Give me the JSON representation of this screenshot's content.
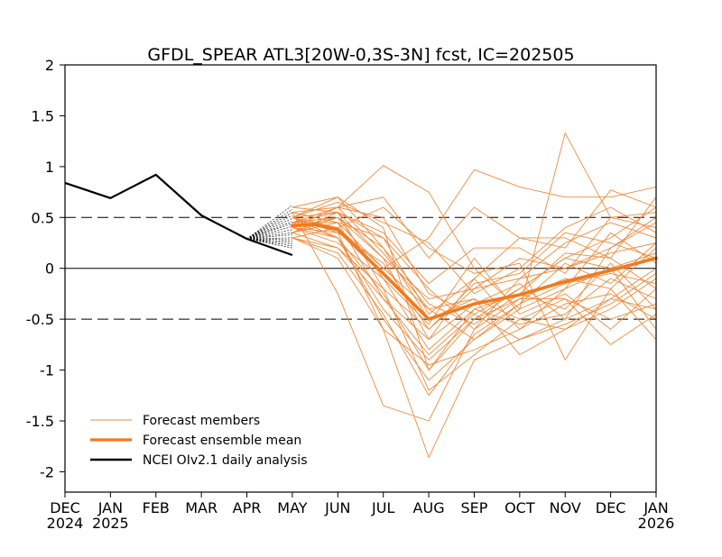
{
  "chart_data": {
    "type": "line",
    "title": "GFDL_SPEAR ATL3[20W-0,3S-3N] fcst, IC=202505",
    "xlabel": "",
    "ylabel": "",
    "ylim": [
      -2.2,
      2.0
    ],
    "yticks": [
      2,
      1.5,
      1,
      0.5,
      0,
      -0.5,
      -1,
      -1.5,
      -2
    ],
    "ytick_labels": [
      "2",
      "1.5",
      "1",
      "0.5",
      "0",
      "-0.5",
      "-1",
      "-1.5",
      "-2"
    ],
    "xlim": [
      0,
      13
    ],
    "xticks": [
      {
        "label": "DEC",
        "year": "2024"
      },
      {
        "label": "JAN",
        "year": "2025"
      },
      {
        "label": "FEB",
        "year": ""
      },
      {
        "label": "MAR",
        "year": ""
      },
      {
        "label": "APR",
        "year": ""
      },
      {
        "label": "MAY",
        "year": ""
      },
      {
        "label": "JUN",
        "year": ""
      },
      {
        "label": "JUL",
        "year": ""
      },
      {
        "label": "AUG",
        "year": ""
      },
      {
        "label": "SEP",
        "year": ""
      },
      {
        "label": "OCT",
        "year": ""
      },
      {
        "label": "NOV",
        "year": ""
      },
      {
        "label": "DEC",
        "year": ""
      },
      {
        "label": "JAN",
        "year": "2026"
      }
    ],
    "reference_lines": [
      {
        "y": 0.5,
        "style": "dashed"
      },
      {
        "y": 0,
        "style": "solid"
      },
      {
        "y": -0.5,
        "style": "dashed"
      }
    ],
    "grid": false,
    "legend_position": "bottom-left",
    "legend": [
      {
        "label": "Forecast members",
        "key": "members"
      },
      {
        "label": "Forecast ensemble mean",
        "key": "mean"
      },
      {
        "label": "NCEI OIv2.1 daily analysis",
        "key": "obs"
      }
    ],
    "colors": {
      "members": "#f08a3c",
      "mean": "#f07a1e",
      "obs": "#000000",
      "initial_fan": "#000000"
    },
    "observed": {
      "x": [
        0,
        1,
        2,
        3,
        4,
        5
      ],
      "y": [
        0.84,
        0.69,
        0.92,
        0.52,
        0.29,
        0.13
      ]
    },
    "initial_fan": {
      "from": [
        4.0,
        0.29
      ],
      "x_end": 5.0,
      "y_ends": [
        0.62,
        0.58,
        0.55,
        0.52,
        0.49,
        0.46,
        0.44,
        0.41,
        0.38,
        0.35,
        0.33,
        0.3,
        0.28,
        0.26,
        0.24,
        0.22,
        0.2
      ]
    },
    "ensemble_mean": {
      "x": [
        5,
        5.5,
        6,
        7,
        8,
        9,
        10,
        11,
        12,
        13
      ],
      "y": [
        0.42,
        0.43,
        0.38,
        -0.05,
        -0.5,
        -0.35,
        -0.26,
        -0.13,
        -0.02,
        0.1
      ]
    },
    "members": {
      "x": [
        5,
        6,
        7,
        8,
        9,
        10,
        11,
        12,
        13
      ],
      "series": [
        {
          "values": [
            0.3,
            0.1,
            -0.6,
            -1.86,
            -0.9,
            -0.7,
            -0.5,
            -0.3,
            0.0
          ]
        },
        {
          "values": [
            0.55,
            -0.25,
            -1.35,
            -1.5,
            -0.6,
            -0.3,
            -0.1,
            -0.2,
            -0.7
          ]
        },
        {
          "values": [
            0.5,
            0.55,
            -0.2,
            -1.2,
            -0.85,
            -0.5,
            -0.6,
            -0.4,
            -0.1
          ]
        },
        {
          "values": [
            0.6,
            0.7,
            0.4,
            -1.0,
            -0.5,
            -0.2,
            0.1,
            0.3,
            0.6
          ]
        },
        {
          "values": [
            0.45,
            0.45,
            0.0,
            0.3,
            0.97,
            0.8,
            0.7,
            0.7,
            0.8
          ]
        },
        {
          "values": [
            0.4,
            0.6,
            1.01,
            0.75,
            0.0,
            -0.4,
            1.33,
            0.5,
            0.4
          ]
        },
        {
          "values": [
            0.35,
            0.2,
            -0.3,
            -0.7,
            -0.1,
            0.3,
            0.2,
            0.77,
            0.6
          ]
        },
        {
          "values": [
            0.5,
            0.7,
            0.2,
            -0.5,
            -0.3,
            -0.85,
            -0.6,
            -0.3,
            -0.4
          ]
        },
        {
          "values": [
            0.4,
            0.5,
            0.1,
            -0.3,
            -0.2,
            -0.1,
            0.25,
            0.45,
            0.3
          ]
        },
        {
          "values": [
            0.3,
            0.4,
            0.6,
            0.2,
            -0.05,
            0.05,
            -0.9,
            -0.2,
            0.2
          ]
        },
        {
          "values": [
            0.5,
            0.3,
            -0.4,
            -0.9,
            -0.5,
            -0.3,
            -0.3,
            -0.75,
            -0.45
          ]
        },
        {
          "values": [
            0.45,
            0.55,
            0.3,
            -0.2,
            -0.6,
            -0.1,
            0.0,
            0.2,
            0.45
          ]
        },
        {
          "values": [
            0.35,
            0.5,
            -0.1,
            -0.8,
            -0.4,
            -0.55,
            -0.45,
            -0.1,
            -0.3
          ]
        },
        {
          "values": [
            0.55,
            0.6,
            0.7,
            0.1,
            0.6,
            0.3,
            0.3,
            0.1,
            -0.2
          ]
        },
        {
          "values": [
            0.4,
            0.3,
            -0.5,
            -1.1,
            -0.7,
            -0.4,
            -0.2,
            0.0,
            -0.6
          ]
        },
        {
          "values": [
            0.5,
            0.4,
            0.0,
            -0.4,
            -0.3,
            -0.5,
            -0.3,
            -0.5,
            -0.35
          ]
        },
        {
          "values": [
            0.3,
            0.2,
            -0.2,
            -0.6,
            -0.2,
            0.1,
            0.0,
            0.15,
            0.25
          ]
        },
        {
          "values": [
            0.45,
            0.6,
            0.5,
            -0.25,
            -0.45,
            -0.2,
            0.1,
            0.0,
            0.15
          ]
        },
        {
          "values": [
            0.4,
            0.35,
            -0.6,
            -0.95,
            -0.8,
            -0.6,
            -0.35,
            -0.25,
            -0.5
          ]
        },
        {
          "values": [
            0.55,
            0.45,
            0.3,
            -0.45,
            -0.1,
            -0.6,
            -0.2,
            0.35,
            0.05
          ]
        },
        {
          "values": [
            0.35,
            0.55,
            0.1,
            -0.7,
            -0.35,
            -0.15,
            -0.5,
            0.2,
            0.5
          ]
        },
        {
          "values": [
            0.5,
            0.65,
            0.45,
            0.25,
            -0.25,
            0.0,
            0.4,
            0.6,
            0.35
          ]
        },
        {
          "values": [
            0.4,
            0.25,
            -0.1,
            -0.55,
            0.1,
            -0.45,
            -0.25,
            -0.6,
            -0.2
          ]
        },
        {
          "values": [
            0.45,
            0.5,
            0.2,
            -0.35,
            -0.55,
            -0.25,
            0.15,
            0.1,
            0.7
          ]
        },
        {
          "values": [
            0.3,
            0.15,
            -0.45,
            -1.25,
            -0.65,
            -0.35,
            -0.15,
            -0.05,
            -0.15
          ]
        },
        {
          "values": [
            0.6,
            0.55,
            0.35,
            -0.15,
            0.2,
            0.2,
            -0.05,
            0.5,
            0.55
          ]
        },
        {
          "values": [
            0.35,
            0.45,
            -0.3,
            -0.85,
            -0.45,
            -0.7,
            -0.55,
            -0.35,
            -0.05
          ]
        },
        {
          "values": [
            0.5,
            0.35,
            0.05,
            -0.6,
            -0.15,
            -0.05,
            0.35,
            0.25,
            0.1
          ]
        },
        {
          "values": [
            0.4,
            0.6,
            0.15,
            -0.4,
            -0.7,
            -0.35,
            0.05,
            -0.15,
            0.25
          ]
        },
        {
          "values": [
            0.45,
            0.3,
            -0.25,
            -1.0,
            -0.4,
            -0.25,
            -0.4,
            0.05,
            -0.4
          ]
        }
      ]
    }
  }
}
